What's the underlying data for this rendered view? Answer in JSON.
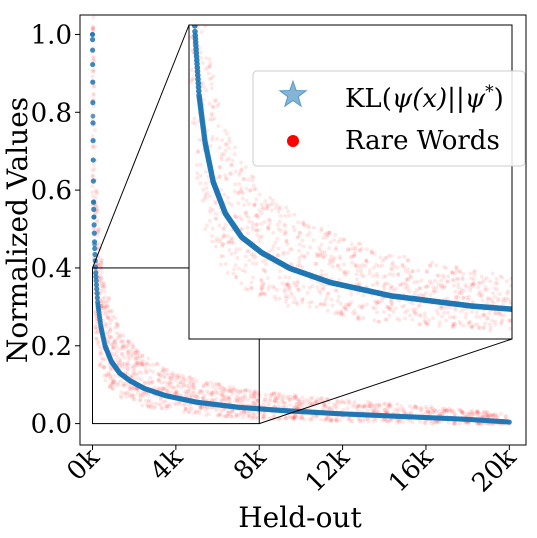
{
  "chart_data": {
    "type": "scatter",
    "title": "",
    "xlabel": "Held-out",
    "ylabel": "Normalized Values",
    "xlim": [
      -600,
      20800
    ],
    "ylim": [
      -0.055,
      1.05
    ],
    "x_ticks": [
      0,
      4000,
      8000,
      12000,
      16000,
      20000
    ],
    "x_tick_labels": [
      "0k",
      "4k",
      "8k",
      "12k",
      "16k",
      "20k"
    ],
    "y_ticks": [
      0.0,
      0.2,
      0.4,
      0.6,
      0.8,
      1.0
    ],
    "y_tick_labels": [
      "0.0",
      "0.2",
      "0.4",
      "0.6",
      "0.8",
      "1.0"
    ],
    "grid": false,
    "legend_position": "top-right (inside inset)",
    "series": [
      {
        "name": "KL(ψ(x)||ψ*)",
        "marker": "star",
        "color": "#1f77b4",
        "curve_points": [
          [
            0,
            1.0
          ],
          [
            20,
            0.79
          ],
          [
            50,
            0.57
          ],
          [
            100,
            0.46
          ],
          [
            150,
            0.39
          ],
          [
            250,
            0.31
          ],
          [
            400,
            0.25
          ],
          [
            600,
            0.2
          ],
          [
            900,
            0.16
          ],
          [
            1300,
            0.13
          ],
          [
            1800,
            0.11
          ],
          [
            2500,
            0.09
          ],
          [
            3500,
            0.072
          ],
          [
            5000,
            0.055
          ],
          [
            7000,
            0.042
          ],
          [
            9000,
            0.034
          ],
          [
            12000,
            0.025
          ],
          [
            15000,
            0.018
          ],
          [
            18000,
            0.011
          ],
          [
            20000,
            0.004
          ]
        ]
      },
      {
        "name": "Rare Words",
        "marker": "circle",
        "color": "#ff0000"
      }
    ],
    "inset": {
      "zoom_region": {
        "x": [
          0,
          8000
        ],
        "y": [
          0.0,
          0.4
        ]
      }
    },
    "legend_entries": [
      {
        "label_base": "KL(",
        "label_psi": "ψ",
        "label_x": "(x)||",
        "label_psi2": "ψ",
        "label_sup": "*",
        "label_end": ")"
      },
      {
        "label": "Rare Words"
      }
    ]
  }
}
